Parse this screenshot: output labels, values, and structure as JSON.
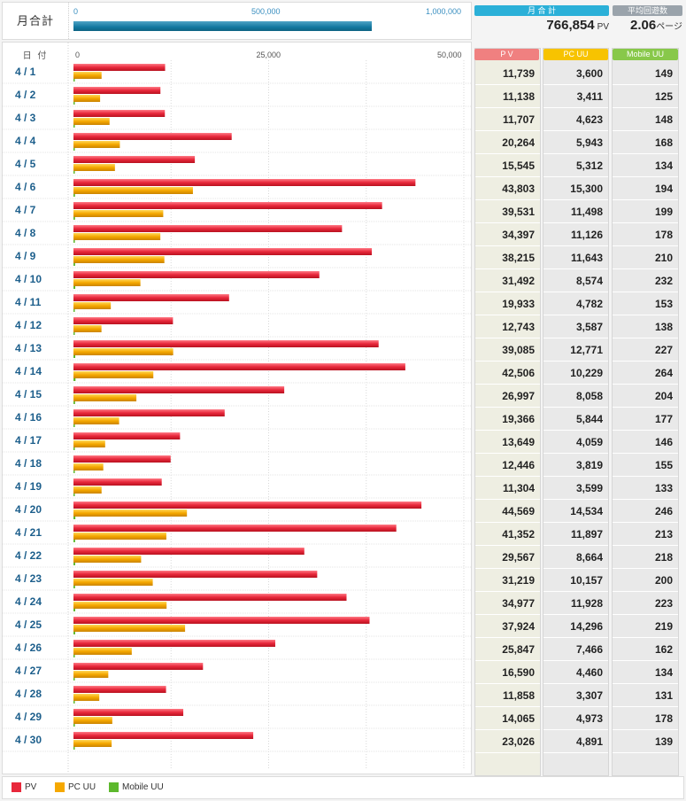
{
  "summary": {
    "monthly_label": "月合計",
    "axis_ticks": [
      "0",
      "500,000",
      "1,000,000"
    ],
    "axis_max": 1000000,
    "total_pv": 766854,
    "stat_monthly_header": "月 合 計",
    "stat_monthly_value": "766,854",
    "stat_monthly_unit": "PV",
    "stat_avg_header": "平均回遊数",
    "stat_avg_value": "2.06",
    "stat_avg_unit": "ページ"
  },
  "table": {
    "date_header": "日 付",
    "axis_ticks": [
      "0",
      "25,000",
      "50,000"
    ],
    "axis_max": 50000,
    "col_pv_header": "P V",
    "col_pcuu_header": "PC UU",
    "col_mobile_header": "Mobile UU",
    "rows": [
      {
        "date": "4 / 1",
        "pv": 11739,
        "pv_text": "11,739",
        "pcuu": 3600,
        "pcuu_text": "3,600",
        "mobile": 149,
        "mobile_text": "149"
      },
      {
        "date": "4 / 2",
        "pv": 11138,
        "pv_text": "11,138",
        "pcuu": 3411,
        "pcuu_text": "3,411",
        "mobile": 125,
        "mobile_text": "125"
      },
      {
        "date": "4 / 3",
        "pv": 11707,
        "pv_text": "11,707",
        "pcuu": 4623,
        "pcuu_text": "4,623",
        "mobile": 148,
        "mobile_text": "148"
      },
      {
        "date": "4 / 4",
        "pv": 20264,
        "pv_text": "20,264",
        "pcuu": 5943,
        "pcuu_text": "5,943",
        "mobile": 168,
        "mobile_text": "168"
      },
      {
        "date": "4 / 5",
        "pv": 15545,
        "pv_text": "15,545",
        "pcuu": 5312,
        "pcuu_text": "5,312",
        "mobile": 134,
        "mobile_text": "134"
      },
      {
        "date": "4 / 6",
        "pv": 43803,
        "pv_text": "43,803",
        "pcuu": 15300,
        "pcuu_text": "15,300",
        "mobile": 194,
        "mobile_text": "194"
      },
      {
        "date": "4 / 7",
        "pv": 39531,
        "pv_text": "39,531",
        "pcuu": 11498,
        "pcuu_text": "11,498",
        "mobile": 199,
        "mobile_text": "199"
      },
      {
        "date": "4 / 8",
        "pv": 34397,
        "pv_text": "34,397",
        "pcuu": 11126,
        "pcuu_text": "11,126",
        "mobile": 178,
        "mobile_text": "178"
      },
      {
        "date": "4 / 9",
        "pv": 38215,
        "pv_text": "38,215",
        "pcuu": 11643,
        "pcuu_text": "11,643",
        "mobile": 210,
        "mobile_text": "210"
      },
      {
        "date": "4 / 10",
        "pv": 31492,
        "pv_text": "31,492",
        "pcuu": 8574,
        "pcuu_text": "8,574",
        "mobile": 232,
        "mobile_text": "232"
      },
      {
        "date": "4 / 11",
        "pv": 19933,
        "pv_text": "19,933",
        "pcuu": 4782,
        "pcuu_text": "4,782",
        "mobile": 153,
        "mobile_text": "153"
      },
      {
        "date": "4 / 12",
        "pv": 12743,
        "pv_text": "12,743",
        "pcuu": 3587,
        "pcuu_text": "3,587",
        "mobile": 138,
        "mobile_text": "138"
      },
      {
        "date": "4 / 13",
        "pv": 39085,
        "pv_text": "39,085",
        "pcuu": 12771,
        "pcuu_text": "12,771",
        "mobile": 227,
        "mobile_text": "227"
      },
      {
        "date": "4 / 14",
        "pv": 42506,
        "pv_text": "42,506",
        "pcuu": 10229,
        "pcuu_text": "10,229",
        "mobile": 264,
        "mobile_text": "264"
      },
      {
        "date": "4 / 15",
        "pv": 26997,
        "pv_text": "26,997",
        "pcuu": 8058,
        "pcuu_text": "8,058",
        "mobile": 204,
        "mobile_text": "204"
      },
      {
        "date": "4 / 16",
        "pv": 19366,
        "pv_text": "19,366",
        "pcuu": 5844,
        "pcuu_text": "5,844",
        "mobile": 177,
        "mobile_text": "177"
      },
      {
        "date": "4 / 17",
        "pv": 13649,
        "pv_text": "13,649",
        "pcuu": 4059,
        "pcuu_text": "4,059",
        "mobile": 146,
        "mobile_text": "146"
      },
      {
        "date": "4 / 18",
        "pv": 12446,
        "pv_text": "12,446",
        "pcuu": 3819,
        "pcuu_text": "3,819",
        "mobile": 155,
        "mobile_text": "155"
      },
      {
        "date": "4 / 19",
        "pv": 11304,
        "pv_text": "11,304",
        "pcuu": 3599,
        "pcuu_text": "3,599",
        "mobile": 133,
        "mobile_text": "133"
      },
      {
        "date": "4 / 20",
        "pv": 44569,
        "pv_text": "44,569",
        "pcuu": 14534,
        "pcuu_text": "14,534",
        "mobile": 246,
        "mobile_text": "246"
      },
      {
        "date": "4 / 21",
        "pv": 41352,
        "pv_text": "41,352",
        "pcuu": 11897,
        "pcuu_text": "11,897",
        "mobile": 213,
        "mobile_text": "213"
      },
      {
        "date": "4 / 22",
        "pv": 29567,
        "pv_text": "29,567",
        "pcuu": 8664,
        "pcuu_text": "8,664",
        "mobile": 218,
        "mobile_text": "218"
      },
      {
        "date": "4 / 23",
        "pv": 31219,
        "pv_text": "31,219",
        "pcuu": 10157,
        "pcuu_text": "10,157",
        "mobile": 200,
        "mobile_text": "200"
      },
      {
        "date": "4 / 24",
        "pv": 34977,
        "pv_text": "34,977",
        "pcuu": 11928,
        "pcuu_text": "11,928",
        "mobile": 223,
        "mobile_text": "223"
      },
      {
        "date": "4 / 25",
        "pv": 37924,
        "pv_text": "37,924",
        "pcuu": 14296,
        "pcuu_text": "14,296",
        "mobile": 219,
        "mobile_text": "219"
      },
      {
        "date": "4 / 26",
        "pv": 25847,
        "pv_text": "25,847",
        "pcuu": 7466,
        "pcuu_text": "7,466",
        "mobile": 162,
        "mobile_text": "162"
      },
      {
        "date": "4 / 27",
        "pv": 16590,
        "pv_text": "16,590",
        "pcuu": 4460,
        "pcuu_text": "4,460",
        "mobile": 134,
        "mobile_text": "134"
      },
      {
        "date": "4 / 28",
        "pv": 11858,
        "pv_text": "11,858",
        "pcuu": 3307,
        "pcuu_text": "3,307",
        "mobile": 131,
        "mobile_text": "131"
      },
      {
        "date": "4 / 29",
        "pv": 14065,
        "pv_text": "14,065",
        "pcuu": 4973,
        "pcuu_text": "4,973",
        "mobile": 178,
        "mobile_text": "178"
      },
      {
        "date": "4 / 30",
        "pv": 23026,
        "pv_text": "23,026",
        "pcuu": 4891,
        "pcuu_text": "4,891",
        "mobile": 139,
        "mobile_text": "139"
      }
    ]
  },
  "legend": {
    "pv": "PV",
    "pcuu": "PC UU",
    "mobile": "Mobile UU"
  },
  "colors": {
    "pv": "#e8283b",
    "pcuu": "#f5a800",
    "mobile": "#5db82d",
    "total_bar": "#13789f",
    "head_pv": "#f08080",
    "head_pcuu": "#f7c300",
    "head_mobile": "#88c84a",
    "head_monthly": "#2bb0d8",
    "head_avg": "#9aa3ab",
    "date_text": "#1d5f8c"
  },
  "chart_data": {
    "type": "bar",
    "categories": [
      "4 / 1",
      "4 / 2",
      "4 / 3",
      "4 / 4",
      "4 / 5",
      "4 / 6",
      "4 / 7",
      "4 / 8",
      "4 / 9",
      "4 / 10",
      "4 / 11",
      "4 / 12",
      "4 / 13",
      "4 / 14",
      "4 / 15",
      "4 / 16",
      "4 / 17",
      "4 / 18",
      "4 / 19",
      "4 / 20",
      "4 / 21",
      "4 / 22",
      "4 / 23",
      "4 / 24",
      "4 / 25",
      "4 / 26",
      "4 / 27",
      "4 / 28",
      "4 / 29",
      "4 / 30"
    ],
    "series": [
      {
        "name": "PV",
        "values": [
          11739,
          11138,
          11707,
          20264,
          15545,
          43803,
          39531,
          34397,
          38215,
          31492,
          19933,
          12743,
          39085,
          42506,
          26997,
          19366,
          13649,
          12446,
          11304,
          44569,
          41352,
          29567,
          31219,
          34977,
          37924,
          25847,
          16590,
          11858,
          14065,
          23026
        ]
      },
      {
        "name": "PC UU",
        "values": [
          3600,
          3411,
          4623,
          5943,
          5312,
          15300,
          11498,
          11126,
          11643,
          8574,
          4782,
          3587,
          12771,
          10229,
          8058,
          5844,
          4059,
          3819,
          3599,
          14534,
          11897,
          8664,
          10157,
          11928,
          14296,
          7466,
          4460,
          3307,
          4973,
          4891
        ]
      },
      {
        "name": "Mobile UU",
        "values": [
          149,
          125,
          148,
          168,
          134,
          194,
          199,
          178,
          210,
          232,
          153,
          138,
          227,
          264,
          204,
          177,
          146,
          155,
          133,
          246,
          213,
          218,
          200,
          223,
          219,
          162,
          134,
          131,
          178,
          139
        ]
      }
    ],
    "xlim": [
      0,
      50000
    ],
    "orientation": "horizontal",
    "legend": "bottom-left"
  }
}
